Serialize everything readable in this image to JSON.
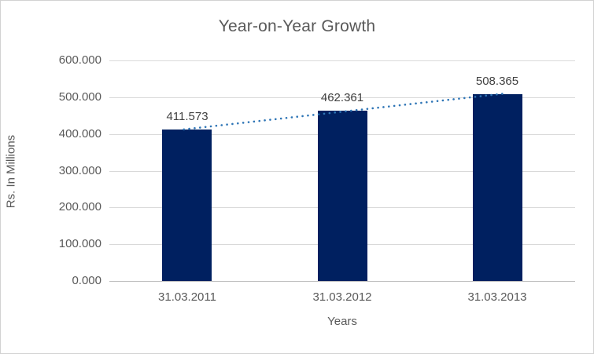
{
  "chart_data": {
    "type": "bar",
    "title": "Year-on-Year Growth",
    "xlabel": "Years",
    "ylabel": "Rs. In Millions",
    "categories": [
      "31.03.2011",
      "31.03.2012",
      "31.03.2013"
    ],
    "values": [
      411.573,
      462.361,
      508.365
    ],
    "value_labels": [
      "411.573",
      "462.361",
      "508.365"
    ],
    "ylim": [
      0,
      600
    ],
    "yticks": [
      0,
      100,
      200,
      300,
      400,
      500,
      600
    ],
    "ytick_labels": [
      "0.000",
      "100.000",
      "200.000",
      "300.000",
      "400.000",
      "500.000",
      "600.000"
    ],
    "grid": true,
    "legend": "none",
    "trendline": {
      "type": "linear",
      "style": "dotted",
      "values": [
        412.4,
        460.8,
        509.2
      ],
      "color": "#2e75b6"
    },
    "colors": {
      "bar": "#002060",
      "gridline": "#d9d9d9",
      "axis_line": "#bfbfbf",
      "title_text": "#595959",
      "tick_text": "#595959",
      "data_label_text": "#404040",
      "frame_border": "#d2d2d2",
      "background": "#ffffff"
    }
  }
}
